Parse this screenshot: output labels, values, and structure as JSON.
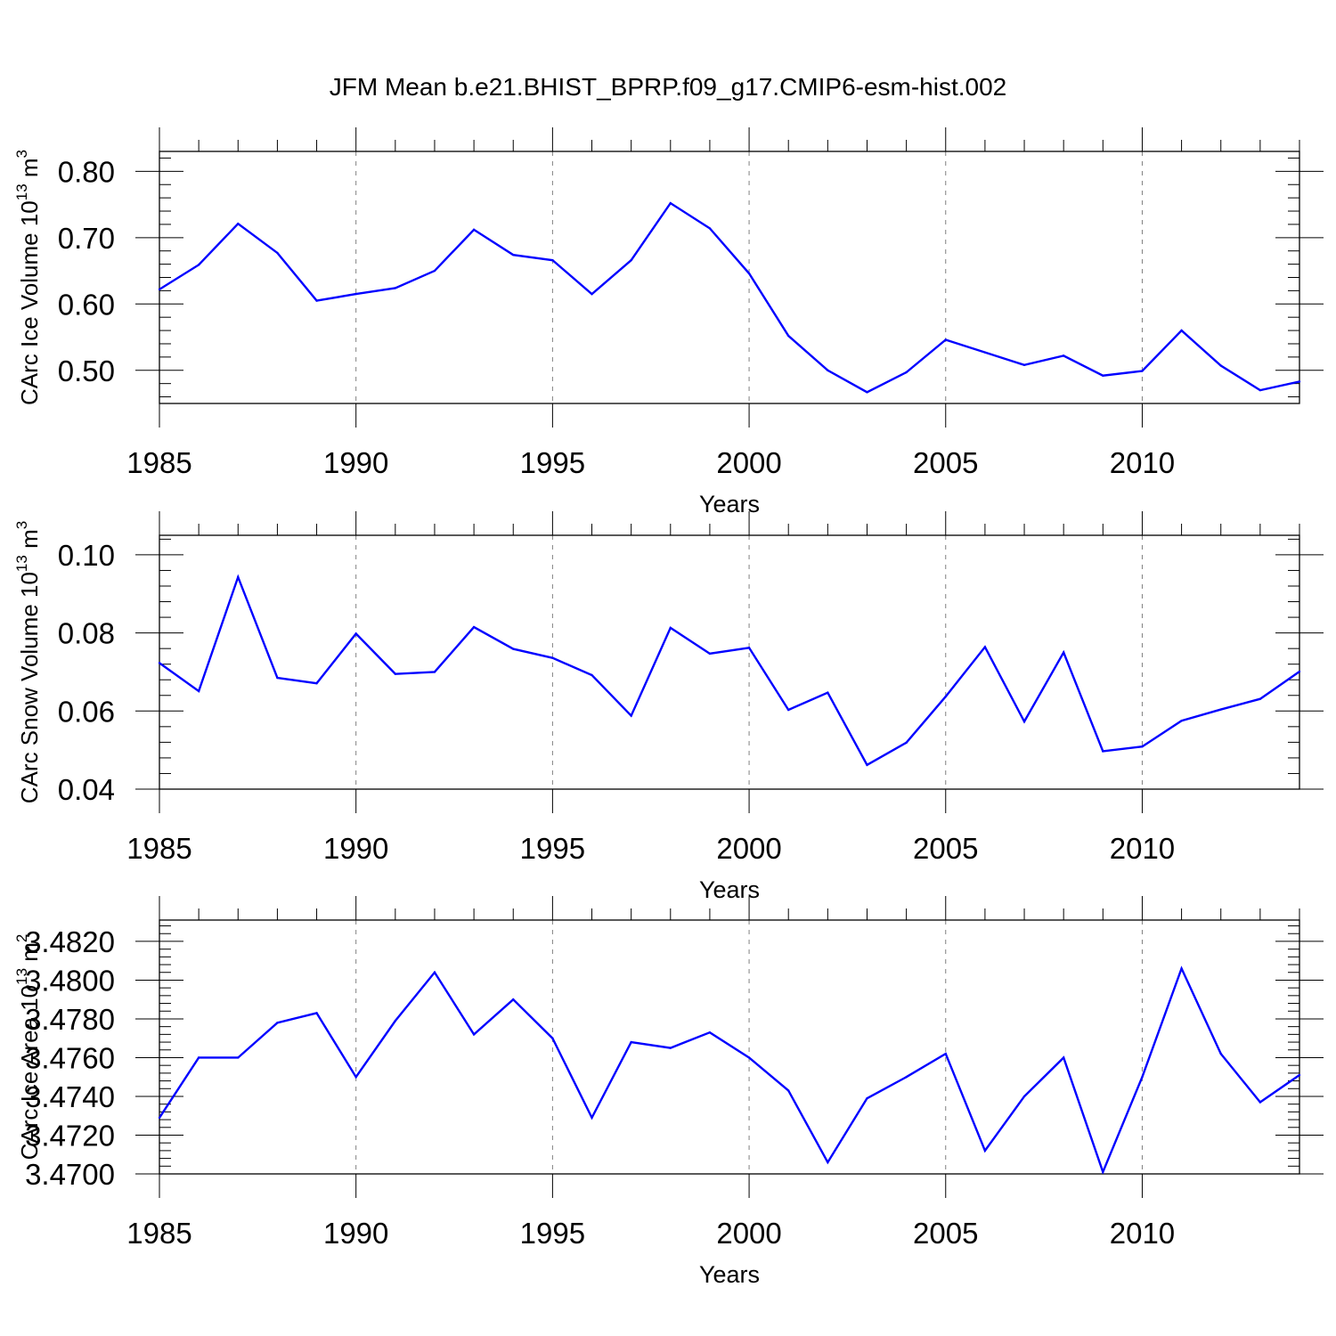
{
  "title": "JFM Mean b.e21.BHIST_BPRP.f09_g17.CMIP6-esm-hist.002",
  "colors": {
    "line": "#0000ff",
    "axes": "#000000",
    "grid": "#808080"
  },
  "chart_data": [
    {
      "type": "line",
      "xlabel": "Years",
      "ylabel": {
        "prefix": "CArc Ice Volume 10",
        "exponent": "13",
        "unit_base": " m",
        "unit_exponent": "3"
      },
      "xlim": [
        1985,
        2014
      ],
      "ylim": [
        0.45,
        0.83
      ],
      "xticks": [
        "1985",
        "1990",
        "1995",
        "2000",
        "2005",
        "2010"
      ],
      "yticks": [
        "0.50",
        "0.60",
        "0.70",
        "0.80"
      ],
      "ytick_values": [
        0.5,
        0.6,
        0.7,
        0.8
      ],
      "x": [
        1985,
        1986,
        1987,
        1988,
        1989,
        1990,
        1991,
        1992,
        1993,
        1994,
        1995,
        1996,
        1997,
        1998,
        1999,
        2000,
        2001,
        2002,
        2003,
        2004,
        2005,
        2006,
        2007,
        2008,
        2009,
        2010,
        2011,
        2012,
        2013,
        2014
      ],
      "values": [
        0.622,
        0.659,
        0.721,
        0.677,
        0.605,
        0.615,
        0.624,
        0.65,
        0.712,
        0.674,
        0.666,
        0.615,
        0.666,
        0.752,
        0.714,
        0.646,
        0.552,
        0.5,
        0.467,
        0.497,
        0.546,
        0.527,
        0.508,
        0.522,
        0.492,
        0.499,
        0.56,
        0.507,
        0.47,
        0.483
      ]
    },
    {
      "type": "line",
      "xlabel": "Years",
      "ylabel": {
        "prefix": "CArc Snow Volume 10",
        "exponent": "13",
        "unit_base": " m",
        "unit_exponent": "3"
      },
      "xlim": [
        1985,
        2014
      ],
      "ylim": [
        0.04,
        0.105
      ],
      "xticks": [
        "1985",
        "1990",
        "1995",
        "2000",
        "2005",
        "2010"
      ],
      "yticks": [
        "0.04",
        "0.06",
        "0.08",
        "0.10"
      ],
      "ytick_values": [
        0.04,
        0.06,
        0.08,
        0.1
      ],
      "x": [
        1985,
        1986,
        1987,
        1988,
        1989,
        1990,
        1991,
        1992,
        1993,
        1994,
        1995,
        1996,
        1997,
        1998,
        1999,
        2000,
        2001,
        2002,
        2003,
        2004,
        2005,
        2006,
        2007,
        2008,
        2009,
        2010,
        2011,
        2012,
        2013,
        2014
      ],
      "values": [
        0.0723,
        0.0651,
        0.0943,
        0.0685,
        0.0671,
        0.0798,
        0.0695,
        0.07,
        0.0815,
        0.0759,
        0.0736,
        0.0692,
        0.0588,
        0.0813,
        0.0747,
        0.0762,
        0.0603,
        0.0647,
        0.0462,
        0.0519,
        0.0637,
        0.0764,
        0.0573,
        0.075,
        0.0497,
        0.0509,
        0.0575,
        0.0604,
        0.0631,
        0.0701
      ]
    },
    {
      "type": "line",
      "xlabel": "Years",
      "ylabel": {
        "prefix": "CArc Ice Area 10",
        "exponent": "13",
        "unit_base": " m",
        "unit_exponent": "2"
      },
      "xlim": [
        1985,
        2014
      ],
      "ylim": [
        3.47,
        3.4831
      ],
      "xticks": [
        "1985",
        "1990",
        "1995",
        "2000",
        "2005",
        "2010"
      ],
      "yticks": [
        "3.4700",
        "3.4720",
        "3.4740",
        "3.4760",
        "3.4780",
        "3.4800",
        "3.4820"
      ],
      "ytick_values": [
        3.47,
        3.472,
        3.474,
        3.476,
        3.478,
        3.48,
        3.482
      ],
      "x": [
        1985,
        1986,
        1987,
        1988,
        1989,
        1990,
        1991,
        1992,
        1993,
        1994,
        1995,
        1996,
        1997,
        1998,
        1999,
        2000,
        2001,
        2002,
        2003,
        2004,
        2005,
        2006,
        2007,
        2008,
        2009,
        2010,
        2011,
        2012,
        2013,
        2014
      ],
      "values": [
        3.4729,
        3.476,
        3.476,
        3.4778,
        3.4783,
        3.475,
        3.4779,
        3.4804,
        3.4772,
        3.479,
        3.477,
        3.4729,
        3.4768,
        3.4765,
        3.4773,
        3.476,
        3.4743,
        3.4706,
        3.4739,
        3.475,
        3.4762,
        3.4712,
        3.474,
        3.476,
        3.4701,
        3.475,
        3.4806,
        3.4762,
        3.4737,
        3.4751
      ]
    }
  ]
}
